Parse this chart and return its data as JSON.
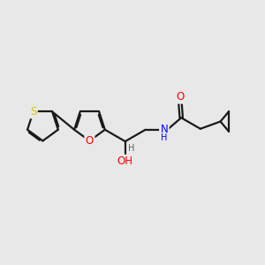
{
  "background_color": "#e8e8e8",
  "bond_color": "#1a1a1a",
  "bond_width": 1.6,
  "atom_colors": {
    "O": "#ff0000",
    "N": "#0000ff",
    "S": "#cccc00",
    "C": "#1a1a1a",
    "H": "#808080"
  },
  "font_size": 8.5,
  "figsize": [
    3.0,
    3.0
  ],
  "dpi": 100
}
